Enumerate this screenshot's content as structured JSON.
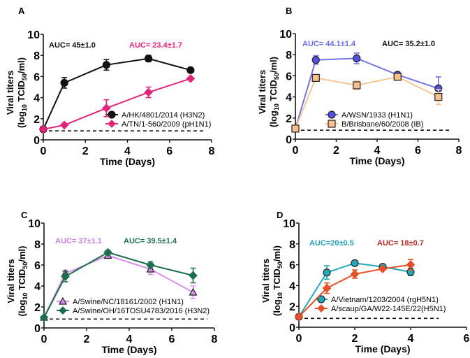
{
  "chart_data": [
    {
      "panel": "A",
      "type": "line",
      "xlabel": "Time (Days)",
      "ylabel": [
        "Viral titers",
        "(log10 TCID50/ml)"
      ],
      "xlim": [
        0,
        8
      ],
      "ylim": [
        0,
        10
      ],
      "xticks": [
        0,
        2,
        4,
        6,
        8
      ],
      "yticks": [
        0,
        2,
        4,
        6,
        8,
        10
      ],
      "limit_of_detection": 0.85,
      "annotations": [
        {
          "text": "AUC= 45±1.0",
          "color": "#111111"
        },
        {
          "text": "AUC= 23.4±1.7",
          "color": "#e0267a"
        }
      ],
      "series": [
        {
          "name": "A/HK/4801/2014 (H3N2)",
          "color": "#111111",
          "line": "#111111",
          "marker": "circle",
          "x": [
            0,
            1,
            3,
            5,
            7
          ],
          "y": [
            1,
            5.4,
            7.1,
            7.7,
            6.6
          ],
          "err": [
            0,
            0.5,
            0.5,
            0.3,
            0.1
          ]
        },
        {
          "name": "A/TN/1-560/2009 (pH1N1)",
          "color": "#e0267a",
          "line": "#e0267a",
          "marker": "diamond",
          "x": [
            0,
            1,
            3,
            5,
            7
          ],
          "y": [
            1,
            1.4,
            3.0,
            4.5,
            5.8
          ],
          "err": [
            0,
            0,
            0.8,
            0.5,
            0.1
          ]
        }
      ]
    },
    {
      "panel": "B",
      "type": "line",
      "xlabel": "Time (Days)",
      "ylabel": [
        "Viral titers",
        "(log10 TCID50/ml)"
      ],
      "xlim": [
        0,
        8
      ],
      "ylim": [
        0,
        10
      ],
      "xticks": [
        0,
        2,
        4,
        6,
        8
      ],
      "yticks": [
        0,
        2,
        4,
        6,
        8,
        10
      ],
      "limit_of_detection": 0.85,
      "annotations": [
        {
          "text": "AUC= 44.1±1.4",
          "color": "#6a6ae8"
        },
        {
          "text": "AUC= 35.2±1.0",
          "color": "#111111"
        }
      ],
      "series": [
        {
          "name": "A/WSN/1933 (H1N1)",
          "color": "#5252e0",
          "line": "#7474e6",
          "marker": "circle",
          "x": [
            0,
            1,
            3,
            5,
            7
          ],
          "y": [
            1,
            7.5,
            7.65,
            6.1,
            4.8
          ],
          "err": [
            0,
            0.4,
            0.5,
            0.1,
            1.1
          ]
        },
        {
          "name": "B/Brisbane/60/2008 (IB)",
          "color": "#f7c08c",
          "line": "#f5c896",
          "marker": "square",
          "x": [
            0,
            1,
            3,
            5,
            7
          ],
          "y": [
            1,
            5.8,
            5.1,
            5.9,
            4.0
          ],
          "err": [
            0,
            0.1,
            0.4,
            0.1,
            0.7
          ]
        }
      ]
    },
    {
      "panel": "C",
      "type": "line",
      "xlabel": "Time (Days)",
      "ylabel": [
        "Viral titers",
        "(log10 TCID50/ml)"
      ],
      "xlim": [
        0,
        8
      ],
      "ylim": [
        0,
        10
      ],
      "xticks": [
        0,
        2,
        4,
        6,
        8
      ],
      "yticks": [
        0,
        2,
        4,
        6,
        8,
        10
      ],
      "limit_of_detection": 0.85,
      "annotations": [
        {
          "text": "AUC= 37±1.1",
          "color": "#c97ee0"
        },
        {
          "text": "AUC= 39.5±1.4",
          "color": "#1f6e4e"
        }
      ],
      "series": [
        {
          "name": "A/Swine/NC/18161/2002 (H1N1)",
          "color": "#d890ea",
          "line": "#d890ea",
          "marker": "triangle",
          "x": [
            0,
            1,
            3,
            5,
            7
          ],
          "y": [
            1,
            5.2,
            6.9,
            5.6,
            3.4
          ],
          "err": [
            0,
            0.3,
            0.2,
            0.5,
            0.6
          ]
        },
        {
          "name": "A/Swine/OH/16TOSU4783/2016 (H3N2)",
          "color": "#1f6e4e",
          "line": "#1f6e4e",
          "marker": "diamond",
          "x": [
            0,
            1,
            3,
            5,
            7
          ],
          "y": [
            1,
            4.9,
            7.2,
            6.0,
            5.0
          ],
          "err": [
            0,
            0.5,
            0.2,
            0.3,
            0.7
          ]
        }
      ]
    },
    {
      "panel": "D",
      "type": "line",
      "xlabel": "Time (Days)",
      "ylabel": [
        "Viral titers",
        "(log10 TCID50/ml)"
      ],
      "xlim": [
        0,
        6
      ],
      "ylim": [
        0,
        10
      ],
      "xticks": [
        0,
        2,
        4,
        6
      ],
      "yticks": [
        0,
        2,
        4,
        6,
        8,
        10
      ],
      "limit_of_detection": 0.85,
      "annotations": [
        {
          "text": "AUC=20±0.5",
          "color": "#22a0b4"
        },
        {
          "text": "AUC= 18±0.7",
          "color": "#b42a22"
        }
      ],
      "series": [
        {
          "name": "A/Vietnam/1203/2004 (rgH5N1)",
          "color": "#22a8b8",
          "line": "#22a8b8",
          "marker": "circle",
          "x": [
            0,
            1,
            2,
            3,
            4
          ],
          "y": [
            1,
            5.25,
            6.15,
            5.8,
            5.3
          ],
          "err": [
            0,
            0.65,
            0.1,
            0.1,
            0.35
          ]
        },
        {
          "name": "A/scaup/GA/W22-145E/22(H5N1)",
          "color": "#e4502a",
          "line": "#e4502a",
          "marker": "diamond",
          "x": [
            0,
            1,
            2,
            3,
            4
          ],
          "y": [
            1,
            3.75,
            5.1,
            5.6,
            6.0
          ],
          "err": [
            0,
            0.5,
            0.4,
            0.1,
            0.5
          ]
        }
      ]
    }
  ]
}
